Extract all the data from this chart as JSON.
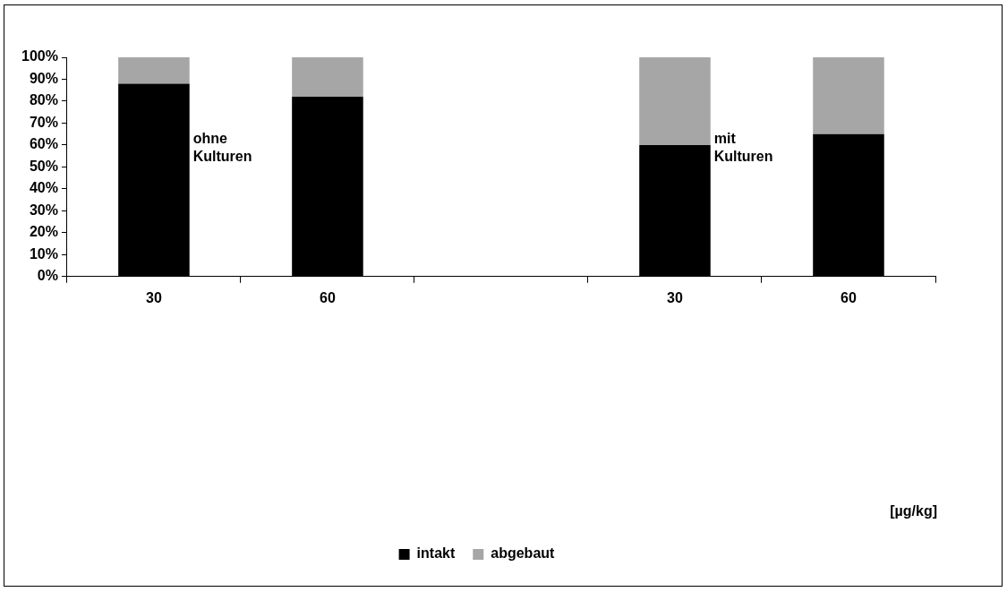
{
  "chart_data": {
    "type": "bar",
    "stacked": true,
    "categories": [
      "30",
      "60",
      null,
      "30",
      "60"
    ],
    "series": [
      {
        "name": "intakt",
        "color": "#000000",
        "values": [
          88,
          82,
          null,
          60,
          65
        ]
      },
      {
        "name": "abgebaut",
        "color": "#a6a6a6",
        "values": [
          12,
          18,
          null,
          40,
          35
        ]
      }
    ],
    "ylim": [
      0,
      100
    ],
    "yticks": [
      {
        "value": 0,
        "label": "0%"
      },
      {
        "value": 10,
        "label": "10%"
      },
      {
        "value": 20,
        "label": "20%"
      },
      {
        "value": 30,
        "label": "30%"
      },
      {
        "value": 40,
        "label": "40%"
      },
      {
        "value": 50,
        "label": "50%"
      },
      {
        "value": 60,
        "label": "60%"
      },
      {
        "value": 70,
        "label": "70%"
      },
      {
        "value": 80,
        "label": "80%"
      },
      {
        "value": 90,
        "label": "90%"
      },
      {
        "value": 100,
        "label": "100%"
      }
    ],
    "grid": false,
    "legend": "bottom",
    "annotations": [
      "ohne Kulturen",
      "mit Kulturen",
      "[µg/kg]"
    ]
  }
}
